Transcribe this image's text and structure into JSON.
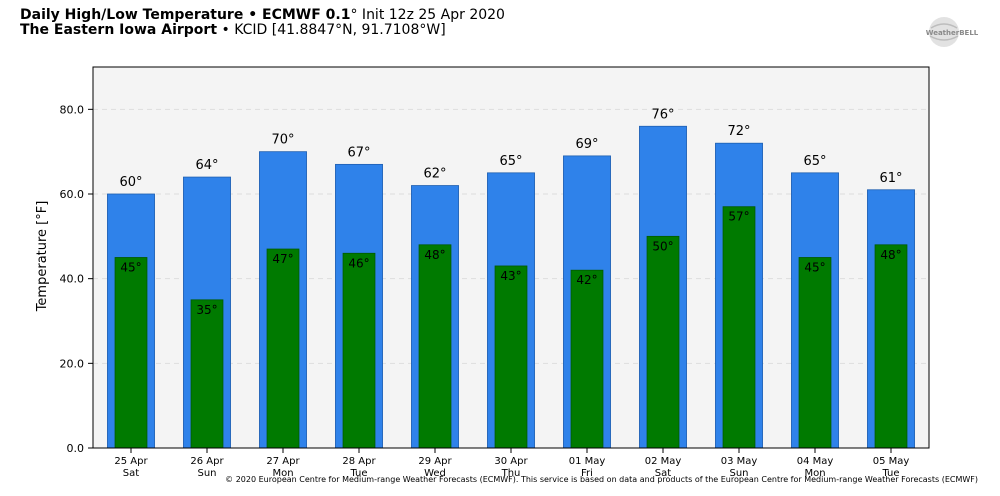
{
  "header": {
    "title_main": "Daily High/Low Temperature • ECMWF 0.1",
    "title_deg": "°",
    "title_init": " Init 12z 25 Apr 2020",
    "station_name": "The Eastern Iowa Airport",
    "station_info": " • KCID [41.8847°N, 91.7108°W]"
  },
  "logo": {
    "text": "WeatherBELL",
    "icon": "weatherbell-logo"
  },
  "credit": "© 2020 European Centre for Medium-range Weather Forecasts (ECMWF). This service is based on data and products of the European Centre for Medium-range Weather Forecasts (ECMWF)",
  "chart_data": {
    "type": "bar",
    "title": "Daily High/Low Temperature • ECMWF 0.1° Init 12z 25 Apr 2020",
    "xlabel": "",
    "ylabel": "Temperature [°F]",
    "ylim": [
      0,
      90
    ],
    "yticks": [
      "0.0",
      "20.0",
      "40.0",
      "60.0",
      "80.0"
    ],
    "ytick_values": [
      0,
      20,
      40,
      60,
      80
    ],
    "grid": true,
    "categories": [
      "25 Apr",
      "26 Apr",
      "27 Apr",
      "28 Apr",
      "29 Apr",
      "30 Apr",
      "01 May",
      "02 May",
      "03 May",
      "04 May",
      "05 May"
    ],
    "weekdays": [
      "Sat",
      "Sun",
      "Mon",
      "Tue",
      "Wed",
      "Thu",
      "Fri",
      "Sat",
      "Sun",
      "Mon",
      "Tue"
    ],
    "series": [
      {
        "values": [
          60,
          64,
          70,
          67,
          62,
          65,
          69,
          76,
          72,
          65,
          61
        ],
        "labels": [
          "60°",
          "64°",
          "70°",
          "67°",
          "62°",
          "65°",
          "69°",
          "76°",
          "72°",
          "65°",
          "61°"
        ],
        "color": "#2f82ea"
      },
      {
        "values": [
          45,
          35,
          47,
          46,
          48,
          43,
          42,
          50,
          57,
          45,
          48
        ],
        "labels": [
          "45°",
          "35°",
          "47°",
          "46°",
          "48°",
          "43°",
          "42°",
          "50°",
          "57°",
          "45°",
          "48°"
        ],
        "color": "#007a00"
      }
    ],
    "colors": {
      "plot_background": "#f4f4f4",
      "grid": "#dddddd"
    }
  }
}
